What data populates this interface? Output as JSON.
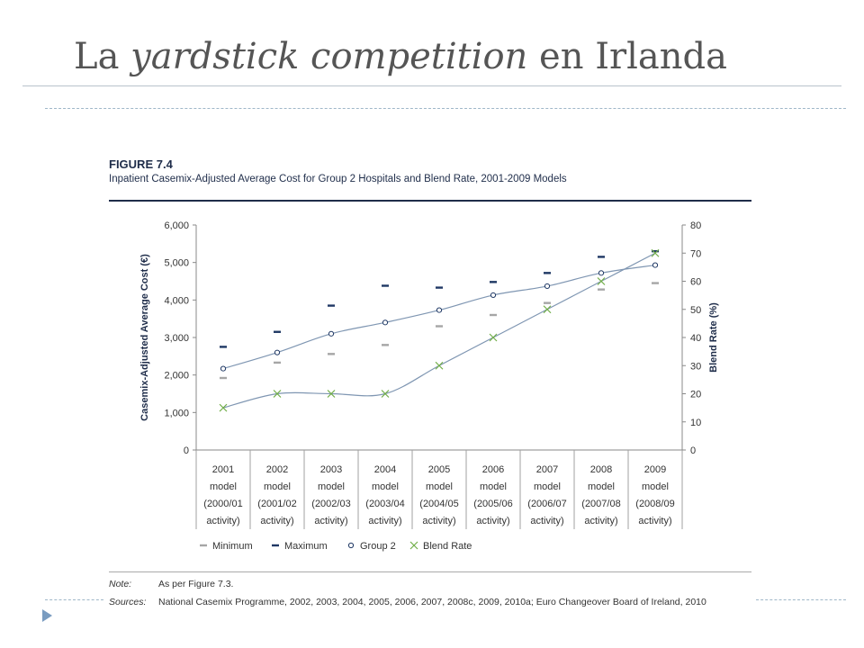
{
  "slide": {
    "title_pre": "La ",
    "title_em": "yardstick competition",
    "title_post": " en Irlanda"
  },
  "figure": {
    "label": "FIGURE 7.4",
    "caption": "Inpatient Casemix-Adjusted Average Cost for Group 2 Hospitals and Blend Rate, 2001-2009 Models"
  },
  "notes": {
    "note_label": "Note:",
    "note_text": "As per Figure 7.3.",
    "sources_label": "Sources:",
    "sources_text": "National Casemix Programme, 2002, 2003, 2004, 2005, 2006, 2007, 2008c, 2009, 2010a; Euro Changeover Board of Ireland, 2010"
  },
  "colors": {
    "minimum": "#a6a6a6",
    "maximum": "#1f3864",
    "group2": "#1f3864",
    "blend": "#70ad47",
    "trend": "#7f96b2",
    "axis": "#888888",
    "text": "#333333"
  },
  "chart_data": {
    "type": "scatter",
    "categories": [
      [
        "2001",
        "model",
        "(2000/01",
        "activity)"
      ],
      [
        "2002",
        "model",
        "(2001/02",
        "activity)"
      ],
      [
        "2003",
        "model",
        "(2002/03",
        "activity)"
      ],
      [
        "2004",
        "model",
        "(2003/04",
        "activity)"
      ],
      [
        "2005",
        "model",
        "(2004/05",
        "activity)"
      ],
      [
        "2006",
        "model",
        "(2005/06",
        "activity)"
      ],
      [
        "2007",
        "model",
        "(2006/07",
        "activity)"
      ],
      [
        "2008",
        "model",
        "(2007/08",
        "activity)"
      ],
      [
        "2009",
        "model",
        "(2008/09",
        "activity)"
      ]
    ],
    "ylabel_left": "Casemix-Adjusted Average Cost (€)",
    "ylabel_right": "Blend Rate (%)",
    "ylim_left": [
      0,
      6000
    ],
    "ylim_right": [
      0,
      80
    ],
    "yticks_left": [
      "0",
      "1,000",
      "2,000",
      "3,000",
      "4,000",
      "5,000",
      "6,000"
    ],
    "yticks_right": [
      "0",
      "10",
      "20",
      "30",
      "40",
      "50",
      "60",
      "70",
      "80"
    ],
    "grid": "vertical category separators",
    "legend_position": "bottom",
    "series": [
      {
        "name": "Minimum",
        "axis": "left",
        "marker": "dash",
        "values": [
          1920,
          2330,
          2560,
          2800,
          3300,
          3600,
          3920,
          4280,
          4450
        ]
      },
      {
        "name": "Maximum",
        "axis": "left",
        "marker": "dash",
        "values": [
          2750,
          3150,
          3850,
          4380,
          4330,
          4480,
          4720,
          5150,
          5300
        ]
      },
      {
        "name": "Group 2",
        "axis": "left",
        "marker": "circle",
        "values": [
          2170,
          2600,
          3100,
          3400,
          3730,
          4130,
          4370,
          4720,
          4930
        ]
      },
      {
        "name": "Blend Rate",
        "axis": "right",
        "marker": "x",
        "values": [
          15,
          20,
          20,
          20,
          30,
          40,
          50,
          60,
          70
        ]
      }
    ]
  }
}
